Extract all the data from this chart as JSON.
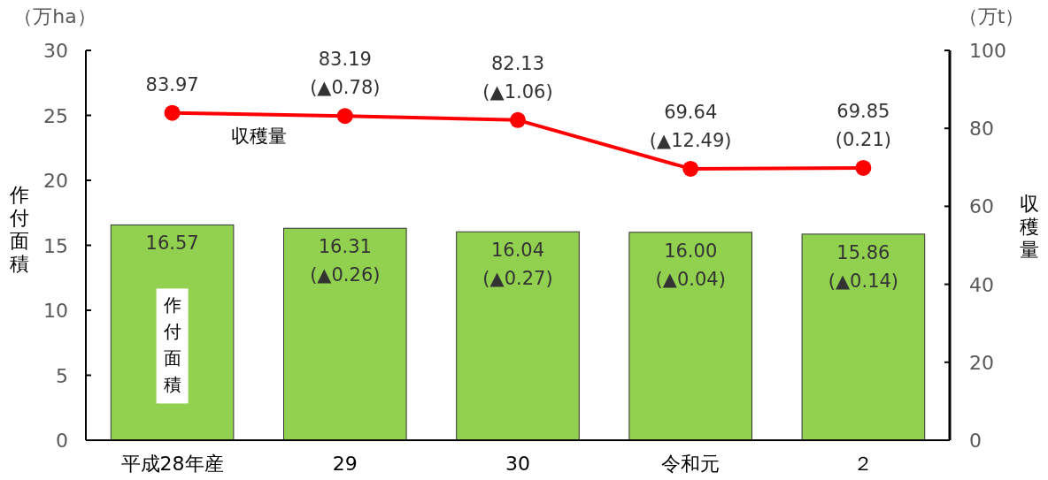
{
  "chart_data": {
    "type": "bar",
    "ylabel": "作付面積",
    "y2label": "収穫量",
    "annotations": [
      "（万ha）",
      "（万t）"
    ],
    "categories": [
      "平成28年産",
      "29",
      "30",
      "令和元",
      "２"
    ],
    "series": [
      {
        "name": "作付面積",
        "color": "#92d050",
        "values": [
          16.57,
          16.31,
          16.04,
          16.0,
          15.86
        ],
        "value_labels": [
          "16.57",
          "16.31\n(▲0.26)",
          "16.04\n(▲0.27)",
          "16.00\n(▲0.04)",
          "15.86\n(▲0.14)"
        ]
      },
      {
        "name": "収穫量",
        "type": "line",
        "axis": "y2",
        "color": "#ff0000",
        "marker": "circle",
        "values": [
          83.97,
          83.19,
          82.13,
          69.64,
          69.85
        ],
        "value_labels": [
          "83.97",
          "83.19\n(▲0.78)",
          "82.13\n(▲1.06)",
          "69.64\n(▲12.49)",
          "69.85\n(0.21)"
        ]
      }
    ],
    "ylim": [
      0,
      30
    ],
    "yticks": [
      0,
      5,
      10,
      15,
      20,
      25,
      30
    ],
    "y2lim": [
      0,
      100
    ],
    "y2ticks": [
      0,
      20,
      40,
      60,
      80,
      100
    ],
    "grid": false
  }
}
